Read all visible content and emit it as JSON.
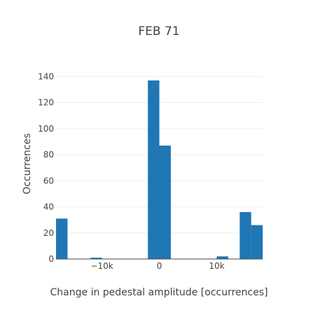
{
  "chart_data": {
    "type": "bar",
    "title": "FEB 71",
    "xlabel": "Change in pedestal amplitude [occurrences]",
    "ylabel": "Occurrences",
    "xlim": [
      -18000,
      18000
    ],
    "ylim": [
      0,
      145
    ],
    "grid": true,
    "bin_width": 2000,
    "x_ticks": [
      -10000,
      0,
      10000
    ],
    "x_tick_labels": [
      "−10k",
      "0",
      "10k"
    ],
    "y_ticks": [
      0,
      20,
      40,
      60,
      80,
      100,
      120,
      140
    ],
    "y_tick_labels": [
      "0",
      "20",
      "40",
      "60",
      "80",
      "100",
      "120",
      "140"
    ],
    "bar_color": "#1f77b4",
    "bins": [
      {
        "x0": -18000,
        "x1": -16000,
        "value": 31
      },
      {
        "x0": -16000,
        "x1": -14000,
        "value": 0
      },
      {
        "x0": -14000,
        "x1": -12000,
        "value": 0
      },
      {
        "x0": -12000,
        "x1": -10000,
        "value": 1
      },
      {
        "x0": -10000,
        "x1": -8000,
        "value": 0
      },
      {
        "x0": -8000,
        "x1": -6000,
        "value": 0
      },
      {
        "x0": -6000,
        "x1": -4000,
        "value": 0
      },
      {
        "x0": -4000,
        "x1": -2000,
        "value": 0
      },
      {
        "x0": -2000,
        "x1": 0,
        "value": 137
      },
      {
        "x0": 0,
        "x1": 2000,
        "value": 87
      },
      {
        "x0": 2000,
        "x1": 4000,
        "value": 0
      },
      {
        "x0": 4000,
        "x1": 6000,
        "value": 0
      },
      {
        "x0": 6000,
        "x1": 8000,
        "value": 0
      },
      {
        "x0": 8000,
        "x1": 10000,
        "value": 0
      },
      {
        "x0": 10000,
        "x1": 12000,
        "value": 2
      },
      {
        "x0": 12000,
        "x1": 14000,
        "value": 0
      },
      {
        "x0": 14000,
        "x1": 16000,
        "value": 36
      },
      {
        "x0": 16000,
        "x1": 18000,
        "value": 26
      }
    ]
  }
}
